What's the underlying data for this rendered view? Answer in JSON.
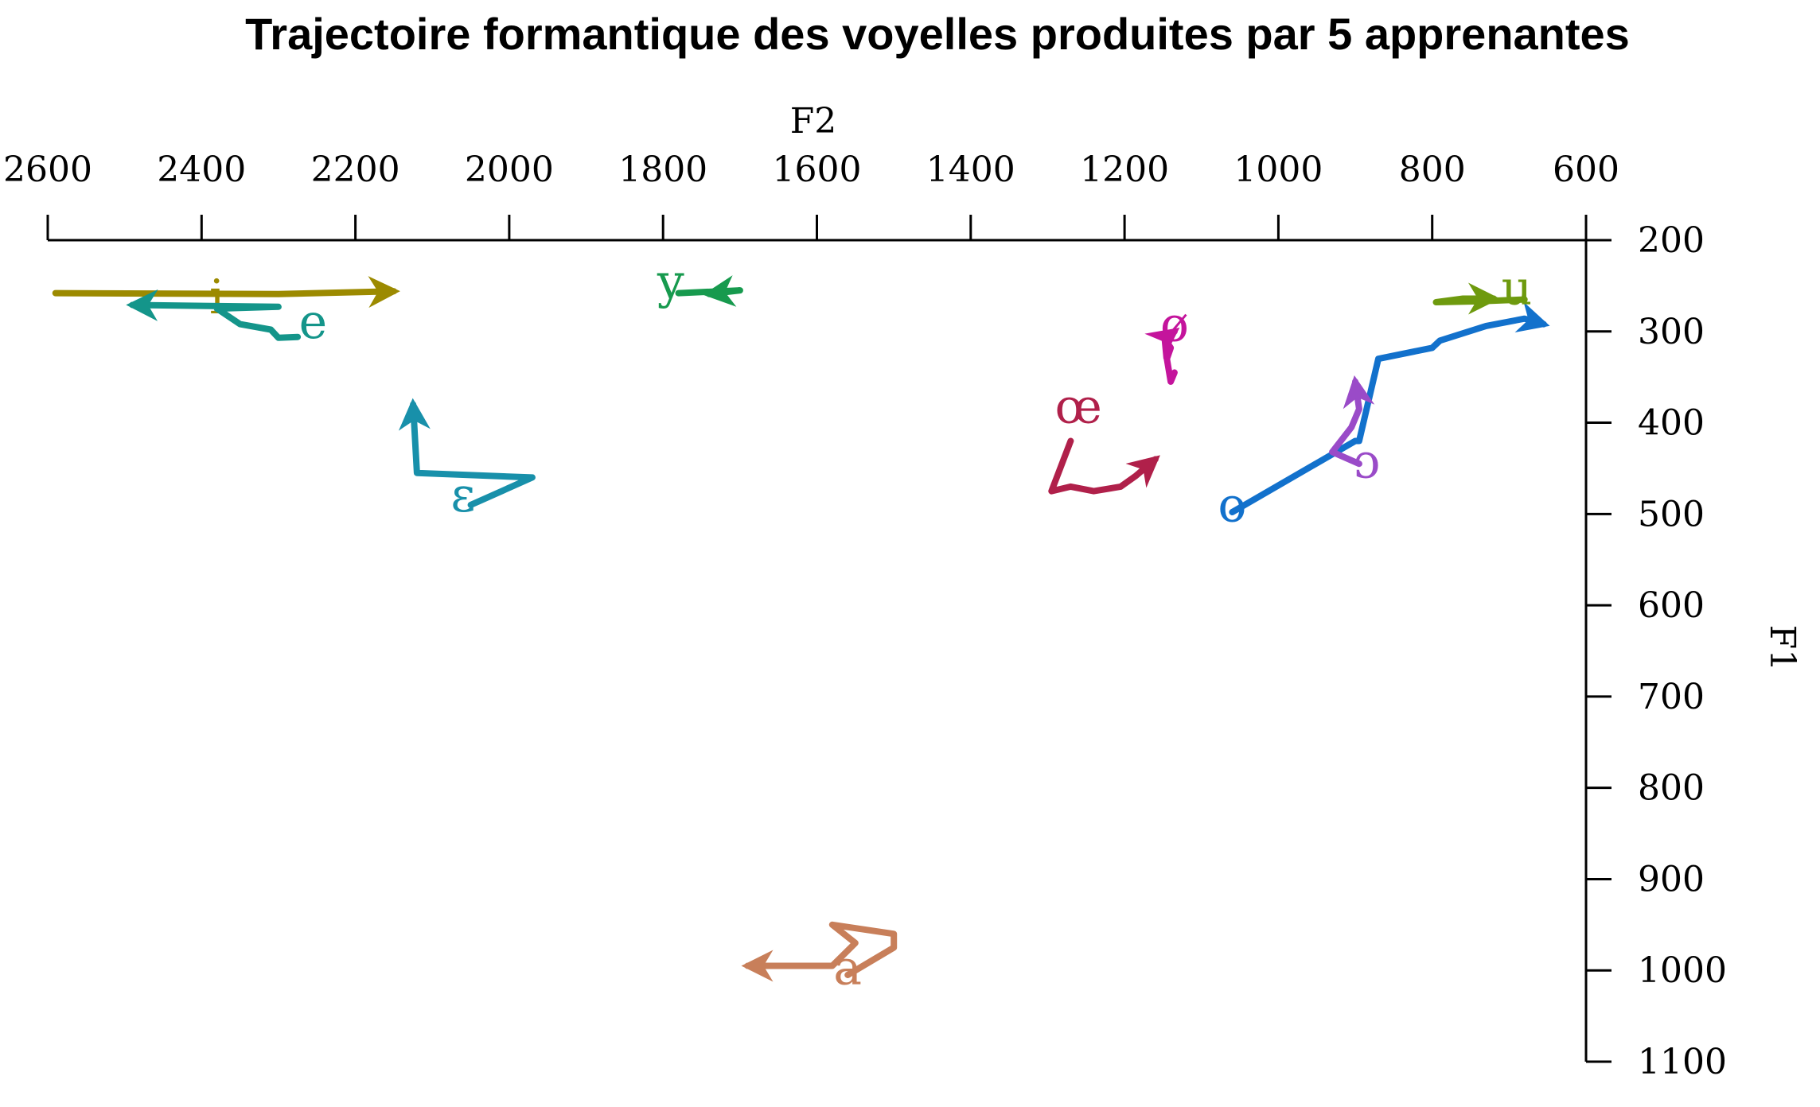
{
  "chart_data": {
    "type": "line",
    "title": "Trajectoire formantique des voyelles produites par 5 apprenantes",
    "xlabel": "F2",
    "ylabel": "F1",
    "xlim": [
      2600,
      600
    ],
    "ylim": [
      200,
      1100
    ],
    "x_axis_position": "top",
    "y_axis_position": "right",
    "x_reversed": true,
    "y_reversed": true,
    "grid": false,
    "legend": "none",
    "xticks": [
      "2600",
      "2400",
      "2200",
      "2000",
      "1800",
      "1600",
      "1400",
      "1200",
      "1000",
      "800",
      "600"
    ],
    "yticks": [
      "200",
      "300",
      "400",
      "500",
      "600",
      "700",
      "800",
      "900",
      "1000",
      "1100"
    ],
    "series": [
      {
        "label": "i",
        "color": "#9c8a00",
        "label_at": [
          2380,
          280
        ],
        "points": [
          [
            2590,
            258
          ],
          [
            2300,
            259
          ],
          [
            2150,
            256
          ]
        ]
      },
      {
        "label": "e",
        "color": "#14958a",
        "label_at": [
          2255,
          307
        ],
        "points": [
          [
            2275,
            306
          ],
          [
            2300,
            307
          ],
          [
            2310,
            298
          ],
          [
            2350,
            292
          ],
          [
            2380,
            275
          ],
          [
            2300,
            273
          ],
          [
            2490,
            271
          ]
        ]
      },
      {
        "label": "y",
        "color": "#179a4e",
        "label_at": [
          1790,
          263
        ],
        "points": [
          [
            1780,
            258
          ],
          [
            1700,
            255
          ],
          [
            1740,
            259
          ]
        ]
      },
      {
        "label": "ɛ",
        "color": "#1890aa",
        "label_at": [
          2060,
          497
        ],
        "points": [
          [
            2050,
            490
          ],
          [
            1970,
            460
          ],
          [
            2120,
            455
          ],
          [
            2125,
            380
          ]
        ]
      },
      {
        "label": "a",
        "color": "#c87f5a",
        "label_at": [
          1560,
          1015
        ],
        "points": [
          [
            1560,
            1005
          ],
          [
            1500,
            975
          ],
          [
            1500,
            960
          ],
          [
            1580,
            950
          ],
          [
            1550,
            970
          ],
          [
            1580,
            995
          ],
          [
            1690,
            995
          ]
        ]
      },
      {
        "label": "œ",
        "color": "#b0204a",
        "label_at": [
          1260,
          400
        ],
        "points": [
          [
            1270,
            420
          ],
          [
            1295,
            475
          ],
          [
            1270,
            470
          ],
          [
            1240,
            475
          ],
          [
            1205,
            470
          ],
          [
            1185,
            458
          ],
          [
            1160,
            440
          ]
        ]
      },
      {
        "label": "ø",
        "color": "#c4149c",
        "label_at": [
          1135,
          310
        ],
        "points": [
          [
            1135,
            345
          ],
          [
            1140,
            355
          ],
          [
            1145,
            330
          ],
          [
            1140,
            318
          ],
          [
            1148,
            308
          ],
          [
            1135,
            300
          ]
        ]
      },
      {
        "label": "o",
        "color": "#1271cc",
        "label_at": [
          1060,
          508
        ],
        "points": [
          [
            1060,
            498
          ],
          [
            900,
            420
          ],
          [
            895,
            420
          ],
          [
            870,
            330
          ],
          [
            800,
            318
          ],
          [
            790,
            310
          ],
          [
            730,
            294
          ],
          [
            680,
            286
          ],
          [
            655,
            292
          ]
        ]
      },
      {
        "label": "ɔ",
        "color": "#9a4bc8",
        "label_at": [
          885,
          460
        ],
        "points": [
          [
            895,
            445
          ],
          [
            930,
            432
          ],
          [
            905,
            405
          ],
          [
            895,
            385
          ],
          [
            900,
            355
          ]
        ]
      },
      {
        "label": "u",
        "color": "#6e9a0e",
        "label_at": [
          690,
          270
        ],
        "points": [
          [
            680,
            265
          ],
          [
            740,
            267
          ],
          [
            795,
            268
          ],
          [
            760,
            264
          ],
          [
            720,
            264
          ]
        ]
      }
    ]
  }
}
